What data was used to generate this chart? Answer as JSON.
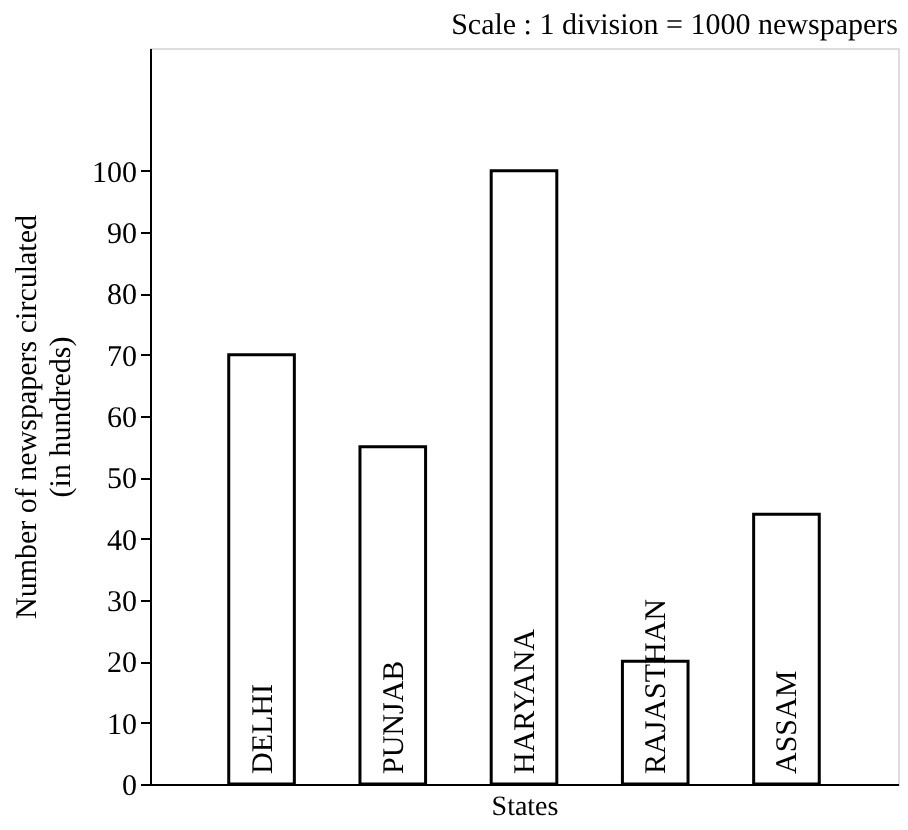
{
  "chart_data": {
    "type": "bar",
    "annotations": [
      "Scale : 1 division = 1000 newspapers"
    ],
    "xlabel": "States",
    "ylabel": "Number of newspapers circulated (in hundreds)",
    "categories": [
      "DELHI",
      "PUNJAB",
      "HARYANA",
      "RAJASTHAN",
      "ASSAM"
    ],
    "values": [
      70,
      55,
      100,
      20,
      44
    ],
    "color": "#ffffff",
    "ylim": [
      0,
      120
    ],
    "yticks": [
      0,
      10,
      20,
      30,
      40,
      50,
      60,
      70,
      80,
      90,
      100
    ],
    "grid": false
  }
}
